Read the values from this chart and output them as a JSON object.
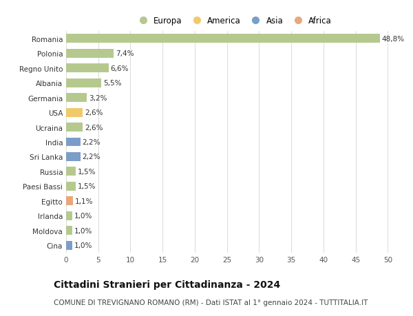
{
  "title": "Cittadini Stranieri per Cittadinanza - 2024",
  "subtitle": "COMUNE DI TREVIGNANO ROMANO (RM) - Dati ISTAT al 1° gennaio 2024 - TUTTITALIA.IT",
  "categories": [
    "Romania",
    "Polonia",
    "Regno Unito",
    "Albania",
    "Germania",
    "USA",
    "Ucraina",
    "India",
    "Sri Lanka",
    "Russia",
    "Paesi Bassi",
    "Egitto",
    "Irlanda",
    "Moldova",
    "Cina"
  ],
  "values": [
    48.8,
    7.4,
    6.6,
    5.5,
    3.2,
    2.6,
    2.6,
    2.2,
    2.2,
    1.5,
    1.5,
    1.1,
    1.0,
    1.0,
    1.0
  ],
  "labels": [
    "48,8%",
    "7,4%",
    "6,6%",
    "5,5%",
    "3,2%",
    "2,6%",
    "2,6%",
    "2,2%",
    "2,2%",
    "1,5%",
    "1,5%",
    "1,1%",
    "1,0%",
    "1,0%",
    "1,0%"
  ],
  "continents": [
    "Europa",
    "Europa",
    "Europa",
    "Europa",
    "Europa",
    "America",
    "Europa",
    "Asia",
    "Asia",
    "Europa",
    "Europa",
    "Africa",
    "Europa",
    "Europa",
    "Asia"
  ],
  "colors": {
    "Europa": "#b5c98e",
    "America": "#f0c96a",
    "Asia": "#7b9ec9",
    "Africa": "#e8a87c"
  },
  "legend_order": [
    "Europa",
    "America",
    "Asia",
    "Africa"
  ],
  "xlim": [
    0,
    52
  ],
  "xticks": [
    0,
    5,
    10,
    15,
    20,
    25,
    30,
    35,
    40,
    45,
    50
  ],
  "background_color": "#ffffff",
  "grid_color": "#dddddd",
  "bar_height": 0.6,
  "label_fontsize": 7.5,
  "title_fontsize": 10,
  "subtitle_fontsize": 7.5,
  "tick_fontsize": 7.5,
  "legend_fontsize": 8.5
}
